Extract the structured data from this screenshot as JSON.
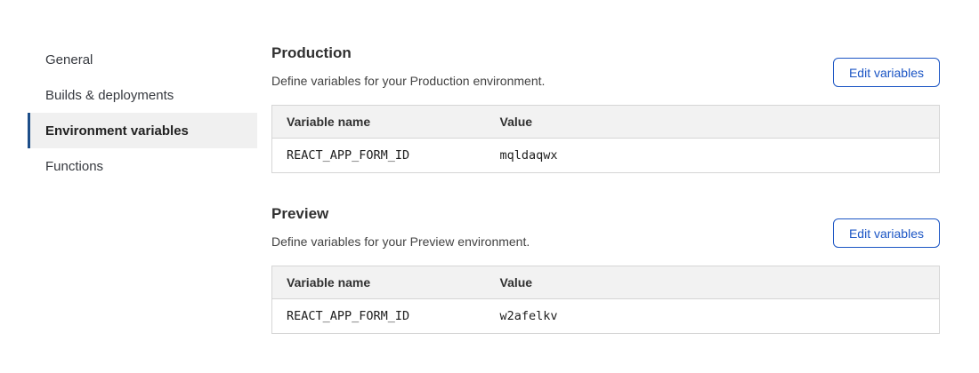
{
  "sidebar": {
    "items": [
      {
        "label": "General",
        "active": false
      },
      {
        "label": "Builds & deployments",
        "active": false
      },
      {
        "label": "Environment variables",
        "active": true
      },
      {
        "label": "Functions",
        "active": false
      }
    ]
  },
  "sections": [
    {
      "title": "Production",
      "description": "Define variables for your Production environment.",
      "button_label": "Edit variables",
      "table": {
        "headers": [
          "Variable name",
          "Value"
        ],
        "rows": [
          [
            "REACT_APP_FORM_ID",
            "mqldaqwx"
          ]
        ]
      }
    },
    {
      "title": "Preview",
      "description": "Define variables for your Preview environment.",
      "button_label": "Edit variables",
      "table": {
        "headers": [
          "Variable name",
          "Value"
        ],
        "rows": [
          [
            "REACT_APP_FORM_ID",
            "w2afelkv"
          ]
        ]
      }
    }
  ],
  "colors": {
    "accent_blue": "#1b55c4",
    "active_indicator": "#1d4e89",
    "active_item_bg": "#f0f0f0",
    "table_header_bg": "#f2f2f2",
    "table_border": "#d5d5d5"
  }
}
